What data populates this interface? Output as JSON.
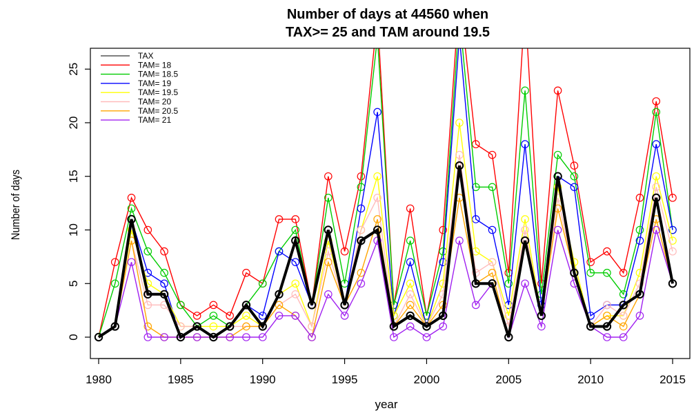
{
  "chart_data": {
    "type": "line",
    "title_line1": "Number of days at  44560 when",
    "title_line2": "TAX>= 25 and TAM around 19.5",
    "xlabel": "year",
    "ylabel": "Number of days",
    "xlim": [
      1980,
      2015
    ],
    "ylim": [
      0,
      27
    ],
    "x_ticks": [
      1980,
      1985,
      1990,
      1995,
      2000,
      2005,
      2010,
      2015
    ],
    "y_ticks": [
      0,
      5,
      10,
      15,
      20,
      25
    ],
    "legend_position": "top-left",
    "x": [
      1980,
      1981,
      1982,
      1983,
      1984,
      1985,
      1986,
      1987,
      1988,
      1989,
      1990,
      1991,
      1992,
      1993,
      1994,
      1995,
      1996,
      1997,
      1998,
      1999,
      2000,
      2001,
      2002,
      2003,
      2004,
      2005,
      2006,
      2007,
      2008,
      2009,
      2010,
      2011,
      2012,
      2013,
      2014,
      2015
    ],
    "series": [
      {
        "name": "TAM= 18",
        "color": "#ff0000",
        "values": [
          0,
          7,
          13,
          10,
          8,
          3,
          2,
          3,
          2,
          6,
          5,
          11,
          11,
          3,
          15,
          8,
          15,
          30,
          3,
          12,
          2,
          10,
          32,
          18,
          17,
          6,
          31,
          5,
          23,
          16,
          7,
          8,
          6,
          13,
          22,
          13
        ]
      },
      {
        "name": "TAM= 18.5",
        "color": "#00cc00",
        "values": [
          0,
          5,
          12,
          8,
          6,
          3,
          1,
          2,
          1,
          3,
          5,
          8,
          10,
          3,
          13,
          5,
          14,
          28,
          3,
          9,
          2,
          8,
          30,
          14,
          14,
          5,
          23,
          4,
          17,
          15,
          6,
          6,
          4,
          10,
          21,
          10
        ]
      },
      {
        "name": "TAM= 19",
        "color": "#0000ff",
        "values": [
          0,
          1,
          11,
          6,
          5,
          0,
          1,
          0,
          1,
          3,
          2,
          8,
          7,
          3,
          10,
          3,
          12,
          21,
          2,
          7,
          1,
          7,
          28,
          11,
          10,
          3,
          18,
          3,
          15,
          14,
          2,
          3,
          3,
          9,
          18,
          10
        ]
      },
      {
        "name": "TAM= 19.5",
        "color": "#ffff00",
        "values": [
          0,
          1,
          10,
          5,
          4,
          1,
          1,
          1,
          1,
          2,
          1,
          4,
          5,
          1,
          9,
          3,
          10,
          15,
          2,
          5,
          1,
          5,
          20,
          8,
          7,
          2,
          11,
          2,
          14,
          7,
          1,
          2,
          2,
          6,
          15,
          9
        ]
      },
      {
        "name": "TAM= 20",
        "color": "#ffbbbb",
        "values": [
          0,
          1,
          9,
          3,
          3,
          1,
          1,
          0,
          1,
          1,
          1,
          3,
          4,
          1,
          8,
          3,
          10,
          13,
          1,
          4,
          1,
          4,
          17,
          6,
          7,
          1,
          10,
          2,
          13,
          6,
          1,
          3,
          2,
          5,
          14,
          8
        ]
      },
      {
        "name": "TAM= 20.5",
        "color": "#ffa500",
        "values": [
          0,
          1,
          9,
          1,
          0,
          0,
          0,
          0,
          0,
          1,
          1,
          3,
          2,
          0,
          7,
          3,
          6,
          11,
          1,
          3,
          1,
          3,
          13,
          5,
          6,
          0,
          9,
          2,
          12,
          6,
          1,
          2,
          1,
          4,
          11,
          5
        ]
      },
      {
        "name": "TAM= 21",
        "color": "#a020f0",
        "values": [
          0,
          1,
          7,
          0,
          0,
          0,
          0,
          0,
          0,
          0,
          0,
          2,
          2,
          0,
          4,
          2,
          5,
          9,
          0,
          1,
          0,
          1,
          9,
          3,
          5,
          0,
          5,
          1,
          10,
          5,
          1,
          0,
          0,
          2,
          10,
          5
        ]
      },
      {
        "name": "TAX",
        "color": "#000000",
        "thick": true,
        "values": [
          0,
          1,
          11,
          4,
          4,
          0,
          1,
          0,
          1,
          3,
          1,
          4,
          9,
          3,
          10,
          3,
          9,
          10,
          1,
          2,
          1,
          2,
          16,
          5,
          5,
          0,
          9,
          2,
          15,
          6,
          1,
          1,
          3,
          4,
          13,
          5
        ]
      }
    ]
  }
}
